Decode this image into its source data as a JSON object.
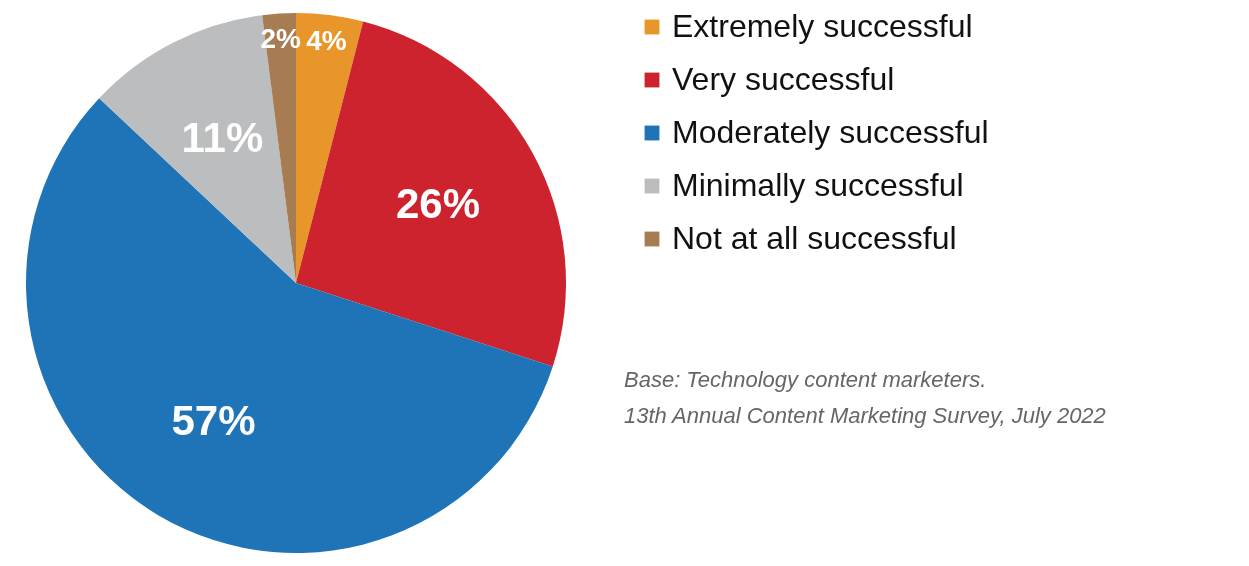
{
  "chart_data": {
    "type": "pie",
    "categories": [
      "Extremely successful",
      "Very successful",
      "Moderately successful",
      "Minimally successful",
      "Not at all successful"
    ],
    "values": [
      4,
      26,
      57,
      11,
      2
    ],
    "colors": [
      "#e8952a",
      "#cc232e",
      "#1f73b7",
      "#bcbdbf",
      "#a87c52"
    ],
    "value_labels": [
      "4%",
      "26%",
      "57%",
      "11%",
      "2%"
    ],
    "legend": "right",
    "annotations": [
      "Base: Technology content marketers.",
      "13th Annual Content Marketing Survey, July 2022"
    ]
  }
}
